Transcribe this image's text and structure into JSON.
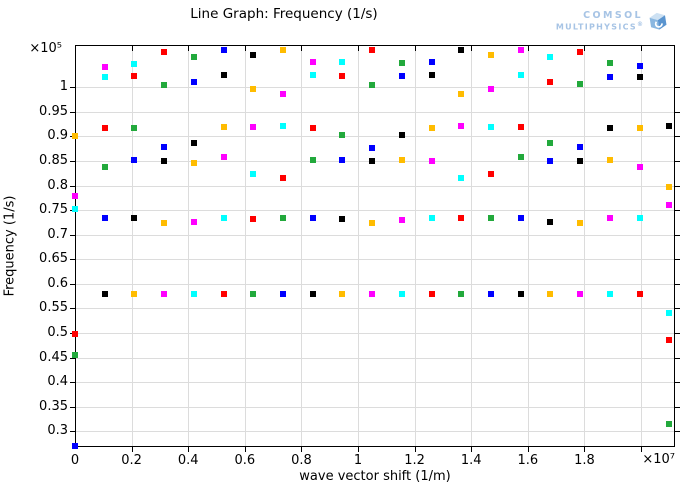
{
  "header": {
    "title": "Line Graph: Frequency (1/s)"
  },
  "logo": {
    "line1": "COMSOL",
    "line2": "MULTIPHYSICS",
    "registered": "®",
    "text_color": "#a7c4e5"
  },
  "chart_data": {
    "type": "scatter",
    "title": "Line Graph: Frequency (1/s)",
    "xlabel": "wave vector shift (1/m)",
    "ylabel": "Frequency (1/s)",
    "x_multiplier": "×10⁷",
    "y_multiplier": "×10⁵",
    "xlim": [
      0,
      2.12
    ],
    "ylim": [
      0.268,
      1.086
    ],
    "grid": true,
    "legend": "none",
    "marker": "square",
    "marker_size_px": 6,
    "x_gridlines": [
      0.2,
      0.4,
      0.6,
      0.8,
      1.0,
      1.2,
      1.4,
      1.6,
      1.8,
      2.0
    ],
    "x_tick_labels": [
      {
        "value": 0,
        "label": "0"
      },
      {
        "value": 0.2,
        "label": "0.2"
      },
      {
        "value": 0.4,
        "label": "0.4"
      },
      {
        "value": 0.6,
        "label": "0.6"
      },
      {
        "value": 0.8,
        "label": "0.8"
      },
      {
        "value": 1.0,
        "label": "1"
      },
      {
        "value": 1.2,
        "label": "1.2"
      },
      {
        "value": 1.4,
        "label": "1.4"
      },
      {
        "value": 1.6,
        "label": "1.6"
      },
      {
        "value": 1.8,
        "label": "1.8"
      }
    ],
    "y_ticks": [
      {
        "value": 0.3,
        "label": "0.3"
      },
      {
        "value": 0.35,
        "label": "0.35"
      },
      {
        "value": 0.4,
        "label": "0.4"
      },
      {
        "value": 0.45,
        "label": "0.45"
      },
      {
        "value": 0.5,
        "label": "0.5"
      },
      {
        "value": 0.55,
        "label": "0.55"
      },
      {
        "value": 0.6,
        "label": "0.6"
      },
      {
        "value": 0.65,
        "label": "0.65"
      },
      {
        "value": 0.7,
        "label": "0.7"
      },
      {
        "value": 0.75,
        "label": "0.75"
      },
      {
        "value": 0.8,
        "label": "0.8"
      },
      {
        "value": 0.85,
        "label": "0.85"
      },
      {
        "value": 0.9,
        "label": "0.9"
      },
      {
        "value": 0.95,
        "label": "0.95"
      },
      {
        "value": 1.0,
        "label": "1"
      }
    ],
    "color_map": {
      "blue": "#0000ff",
      "green": "#22a93c",
      "red": "#ff0000",
      "cyan": "#00ffff",
      "magenta": "#ff00ff",
      "yellow": "#ffbc00",
      "black": "#000000"
    },
    "points_format": [
      "frequency_x1e5",
      "color"
    ],
    "columns": [
      {
        "x": 0.0,
        "points": [
          [
            0.9,
            "yellow"
          ],
          [
            0.779,
            "magenta"
          ],
          [
            0.753,
            "cyan"
          ],
          [
            0.498,
            "red"
          ],
          [
            0.456,
            "green"
          ],
          [
            0.27,
            "blue"
          ]
        ]
      },
      {
        "x": 0.105,
        "points": [
          [
            1.042,
            "magenta"
          ],
          [
            1.021,
            "cyan"
          ],
          [
            0.918,
            "red"
          ],
          [
            0.838,
            "green"
          ],
          [
            0.734,
            "blue"
          ],
          [
            0.58,
            "black"
          ]
        ]
      },
      {
        "x": 0.21,
        "points": [
          [
            1.048,
            "cyan"
          ],
          [
            1.022,
            "red"
          ],
          [
            0.918,
            "green"
          ],
          [
            0.852,
            "blue"
          ],
          [
            0.734,
            "black"
          ],
          [
            0.58,
            "yellow"
          ]
        ]
      },
      {
        "x": 0.315,
        "points": [
          [
            1.072,
            "red"
          ],
          [
            1.005,
            "green"
          ],
          [
            0.879,
            "blue"
          ],
          [
            0.85,
            "black"
          ],
          [
            0.724,
            "yellow"
          ],
          [
            0.58,
            "magenta"
          ]
        ]
      },
      {
        "x": 0.42,
        "points": [
          [
            1.062,
            "green"
          ],
          [
            1.01,
            "blue"
          ],
          [
            0.887,
            "black"
          ],
          [
            0.845,
            "yellow"
          ],
          [
            0.726,
            "magenta"
          ],
          [
            0.58,
            "cyan"
          ]
        ]
      },
      {
        "x": 0.525,
        "points": [
          [
            1.076,
            "blue"
          ],
          [
            1.024,
            "black"
          ],
          [
            0.92,
            "yellow"
          ],
          [
            0.858,
            "magenta"
          ],
          [
            0.734,
            "cyan"
          ],
          [
            0.58,
            "red"
          ]
        ]
      },
      {
        "x": 0.63,
        "points": [
          [
            1.066,
            "black"
          ],
          [
            0.996,
            "yellow"
          ],
          [
            0.92,
            "magenta"
          ],
          [
            0.824,
            "cyan"
          ],
          [
            0.732,
            "red"
          ],
          [
            0.58,
            "green"
          ]
        ]
      },
      {
        "x": 0.735,
        "points": [
          [
            1.076,
            "yellow"
          ],
          [
            0.986,
            "magenta"
          ],
          [
            0.922,
            "cyan"
          ],
          [
            0.815,
            "red"
          ],
          [
            0.734,
            "green"
          ],
          [
            0.58,
            "blue"
          ]
        ]
      },
      {
        "x": 0.84,
        "points": [
          [
            1.052,
            "magenta"
          ],
          [
            1.025,
            "cyan"
          ],
          [
            0.918,
            "red"
          ],
          [
            0.853,
            "green"
          ],
          [
            0.734,
            "blue"
          ],
          [
            0.58,
            "black"
          ]
        ]
      },
      {
        "x": 0.945,
        "points": [
          [
            1.052,
            "cyan"
          ],
          [
            1.022,
            "red"
          ],
          [
            0.903,
            "green"
          ],
          [
            0.853,
            "blue"
          ],
          [
            0.732,
            "black"
          ],
          [
            0.58,
            "yellow"
          ]
        ]
      },
      {
        "x": 1.05,
        "points": [
          [
            1.076,
            "red"
          ],
          [
            1.005,
            "green"
          ],
          [
            0.877,
            "blue"
          ],
          [
            0.85,
            "black"
          ],
          [
            0.724,
            "yellow"
          ],
          [
            0.58,
            "magenta"
          ]
        ]
      },
      {
        "x": 1.155,
        "points": [
          [
            1.05,
            "green"
          ],
          [
            1.022,
            "blue"
          ],
          [
            0.903,
            "black"
          ],
          [
            0.853,
            "yellow"
          ],
          [
            0.73,
            "magenta"
          ],
          [
            0.58,
            "cyan"
          ]
        ]
      },
      {
        "x": 1.26,
        "points": [
          [
            1.052,
            "blue"
          ],
          [
            1.025,
            "black"
          ],
          [
            0.918,
            "yellow"
          ],
          [
            0.85,
            "magenta"
          ],
          [
            0.734,
            "cyan"
          ],
          [
            0.58,
            "red"
          ]
        ]
      },
      {
        "x": 1.365,
        "points": [
          [
            1.076,
            "black"
          ],
          [
            0.986,
            "yellow"
          ],
          [
            0.922,
            "magenta"
          ],
          [
            0.815,
            "cyan"
          ],
          [
            0.734,
            "red"
          ],
          [
            0.58,
            "green"
          ]
        ]
      },
      {
        "x": 1.47,
        "points": [
          [
            1.066,
            "yellow"
          ],
          [
            0.996,
            "magenta"
          ],
          [
            0.92,
            "cyan"
          ],
          [
            0.824,
            "red"
          ],
          [
            0.734,
            "green"
          ],
          [
            0.58,
            "blue"
          ]
        ]
      },
      {
        "x": 1.575,
        "points": [
          [
            1.076,
            "magenta"
          ],
          [
            1.024,
            "cyan"
          ],
          [
            0.92,
            "red"
          ],
          [
            0.858,
            "green"
          ],
          [
            0.734,
            "blue"
          ],
          [
            0.58,
            "black"
          ]
        ]
      },
      {
        "x": 1.68,
        "points": [
          [
            1.062,
            "cyan"
          ],
          [
            1.01,
            "red"
          ],
          [
            0.887,
            "green"
          ],
          [
            0.85,
            "blue"
          ],
          [
            0.726,
            "black"
          ],
          [
            0.58,
            "yellow"
          ]
        ]
      },
      {
        "x": 1.785,
        "points": [
          [
            1.072,
            "red"
          ],
          [
            1.007,
            "green"
          ],
          [
            0.879,
            "blue"
          ],
          [
            0.85,
            "black"
          ],
          [
            0.724,
            "yellow"
          ],
          [
            0.58,
            "magenta"
          ]
        ]
      },
      {
        "x": 1.89,
        "points": [
          [
            1.05,
            "green"
          ],
          [
            1.021,
            "blue"
          ],
          [
            0.918,
            "black"
          ],
          [
            0.853,
            "yellow"
          ],
          [
            0.734,
            "magenta"
          ],
          [
            0.58,
            "cyan"
          ]
        ]
      },
      {
        "x": 1.995,
        "points": [
          [
            1.044,
            "blue"
          ],
          [
            1.021,
            "black"
          ],
          [
            0.918,
            "yellow"
          ],
          [
            0.838,
            "magenta"
          ],
          [
            0.734,
            "cyan"
          ],
          [
            0.58,
            "red"
          ]
        ]
      },
      {
        "x": 2.1,
        "points": [
          [
            0.922,
            "black"
          ],
          [
            0.797,
            "yellow"
          ],
          [
            0.76,
            "magenta"
          ],
          [
            0.54,
            "cyan"
          ],
          [
            0.486,
            "red"
          ],
          [
            0.314,
            "green"
          ]
        ]
      }
    ]
  }
}
